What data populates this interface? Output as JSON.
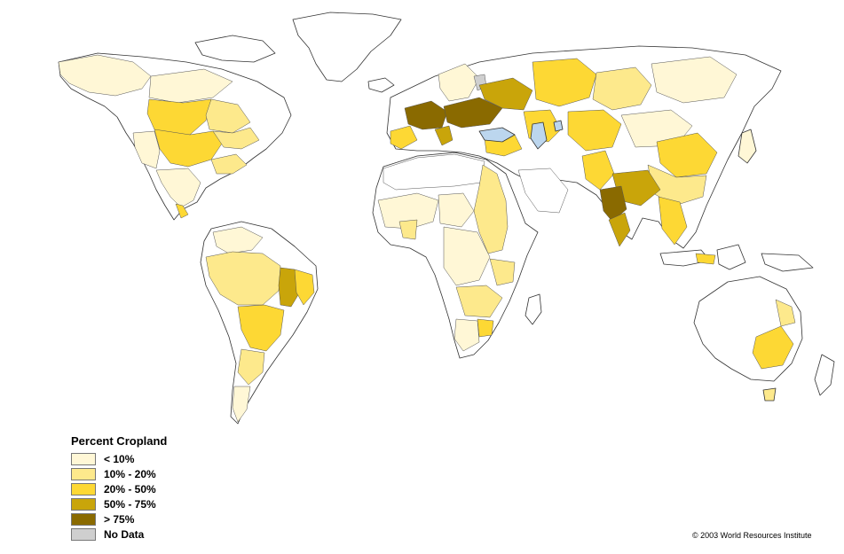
{
  "legend": {
    "title": "Percent Cropland",
    "classes": [
      {
        "label": "< 10%",
        "color": "#fff7d6"
      },
      {
        "label": "10% - 20%",
        "color": "#fde98c"
      },
      {
        "label": "20% - 50%",
        "color": "#fdd834"
      },
      {
        "label": "50% - 75%",
        "color": "#c9a50a"
      },
      {
        "label": "> 75%",
        "color": "#8a6a00"
      },
      {
        "label": "No Data",
        "color": "#cfcfcf"
      }
    ]
  },
  "colors": {
    "water": "#bcd6ee",
    "unclassified_land": "#ffffff",
    "outline": "#333333"
  },
  "copyright": "© 2003 World Resources Institute"
}
